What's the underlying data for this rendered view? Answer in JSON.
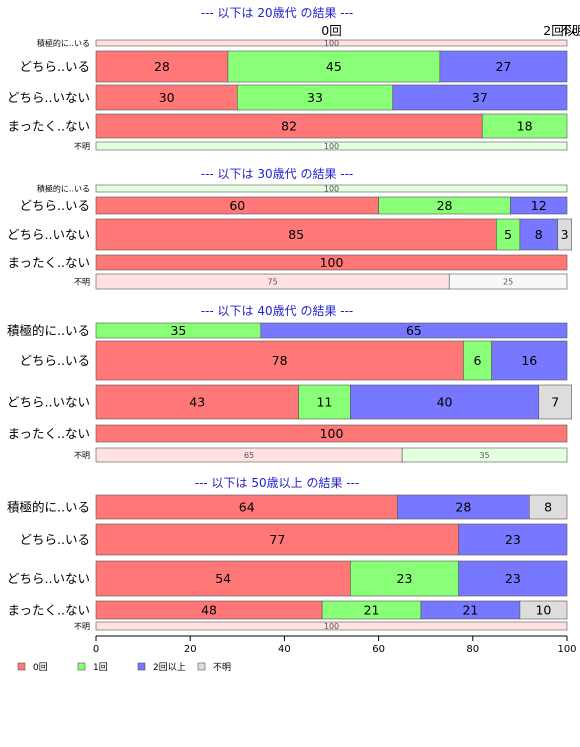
{
  "chart_data": {
    "type": "bar",
    "orientation": "horizontal",
    "stacked": true,
    "normalized_percent": true,
    "xlim": [
      0,
      100
    ],
    "xticks": [
      0,
      20,
      40,
      60,
      80,
      100
    ],
    "legend_placement": "bottom-left",
    "series_colors": {
      "0回": "#ff7777",
      "1回": "#88ff77",
      "2回以上": "#7777ff",
      "不明": "#dddddd"
    },
    "legend": [
      {
        "name": "0回",
        "color": "#ff7777"
      },
      {
        "name": "1回",
        "color": "#88ff77"
      },
      {
        "name": "2回以上",
        "color": "#7777ff"
      },
      {
        "name": "不明",
        "color": "#dddddd"
      }
    ],
    "panels": [
      {
        "title": "--- 以下は 20歳代 の結果 ---",
        "top_labels": [
          "0回",
          "2回以上",
          "不明"
        ],
        "rows": [
          {
            "label": "積極的に..いる",
            "small": true,
            "segments": [
              {
                "series": "0回",
                "value": 100
              }
            ]
          },
          {
            "label": "どちら..いる",
            "small": false,
            "segments": [
              {
                "series": "0回",
                "value": 28
              },
              {
                "series": "1回",
                "value": 45
              },
              {
                "series": "2回以上",
                "value": 27
              }
            ]
          },
          {
            "label": "どちら..いない",
            "small": false,
            "segments": [
              {
                "series": "0回",
                "value": 30
              },
              {
                "series": "1回",
                "value": 33
              },
              {
                "series": "2回以上",
                "value": 37
              }
            ]
          },
          {
            "label": "まったく..ない",
            "small": false,
            "segments": [
              {
                "series": "0回",
                "value": 82
              },
              {
                "series": "1回",
                "value": 18
              }
            ]
          },
          {
            "label": "不明",
            "small": true,
            "segments": [
              {
                "series": "1回",
                "value": 100
              }
            ]
          }
        ]
      },
      {
        "title": "--- 以下は 30歳代 の結果 ---",
        "rows": [
          {
            "label": "積極的に..いる",
            "small": true,
            "segments": [
              {
                "series": "1回",
                "value": 100
              }
            ]
          },
          {
            "label": "どちら..いる",
            "small": false,
            "segments": [
              {
                "series": "0回",
                "value": 60
              },
              {
                "series": "1回",
                "value": 28
              },
              {
                "series": "2回以上",
                "value": 12
              }
            ]
          },
          {
            "label": "どちら..いない",
            "small": false,
            "segments": [
              {
                "series": "0回",
                "value": 85
              },
              {
                "series": "1回",
                "value": 5
              },
              {
                "series": "2回以上",
                "value": 8
              },
              {
                "series": "不明",
                "value": 3
              }
            ]
          },
          {
            "label": "まったく..ない",
            "small": false,
            "segments": [
              {
                "series": "0回",
                "value": 100
              }
            ]
          },
          {
            "label": "不明",
            "small": true,
            "segments": [
              {
                "series": "0回",
                "value": 75
              },
              {
                "series": "不明",
                "value": 25
              }
            ]
          }
        ]
      },
      {
        "title": "--- 以下は 40歳代 の結果 ---",
        "rows": [
          {
            "label": "積極的に..いる",
            "small": false,
            "segments": [
              {
                "series": "1回",
                "value": 35
              },
              {
                "series": "2回以上",
                "value": 65
              }
            ]
          },
          {
            "label": "どちら..いる",
            "small": false,
            "segments": [
              {
                "series": "0回",
                "value": 78
              },
              {
                "series": "1回",
                "value": 6
              },
              {
                "series": "2回以上",
                "value": 16
              }
            ]
          },
          {
            "label": "どちら..いない",
            "small": false,
            "segments": [
              {
                "series": "0回",
                "value": 43
              },
              {
                "series": "1回",
                "value": 11
              },
              {
                "series": "2回以上",
                "value": 40
              },
              {
                "series": "不明",
                "value": 7
              }
            ]
          },
          {
            "label": "まったく..ない",
            "small": false,
            "segments": [
              {
                "series": "0回",
                "value": 100
              }
            ]
          },
          {
            "label": "不明",
            "small": true,
            "segments": [
              {
                "series": "0回",
                "value": 65
              },
              {
                "series": "1回",
                "value": 35
              }
            ]
          }
        ]
      },
      {
        "title": "--- 以下は 50歳以上 の結果 ---",
        "rows": [
          {
            "label": "積極的に..いる",
            "small": false,
            "segments": [
              {
                "series": "0回",
                "value": 64
              },
              {
                "series": "2回以上",
                "value": 28
              },
              {
                "series": "不明",
                "value": 8
              }
            ]
          },
          {
            "label": "どちら..いる",
            "small": false,
            "segments": [
              {
                "series": "0回",
                "value": 77
              },
              {
                "series": "2回以上",
                "value": 23
              }
            ]
          },
          {
            "label": "どちら..いない",
            "small": false,
            "segments": [
              {
                "series": "0回",
                "value": 54
              },
              {
                "series": "1回",
                "value": 23
              },
              {
                "series": "2回以上",
                "value": 23
              }
            ]
          },
          {
            "label": "まったく..ない",
            "small": false,
            "segments": [
              {
                "series": "0回",
                "value": 48
              },
              {
                "series": "1回",
                "value": 21
              },
              {
                "series": "2回以上",
                "value": 21
              },
              {
                "series": "不明",
                "value": 10
              }
            ]
          },
          {
            "label": "不明",
            "small": true,
            "segments": [
              {
                "series": "0回",
                "value": 100
              }
            ]
          }
        ]
      }
    ]
  }
}
